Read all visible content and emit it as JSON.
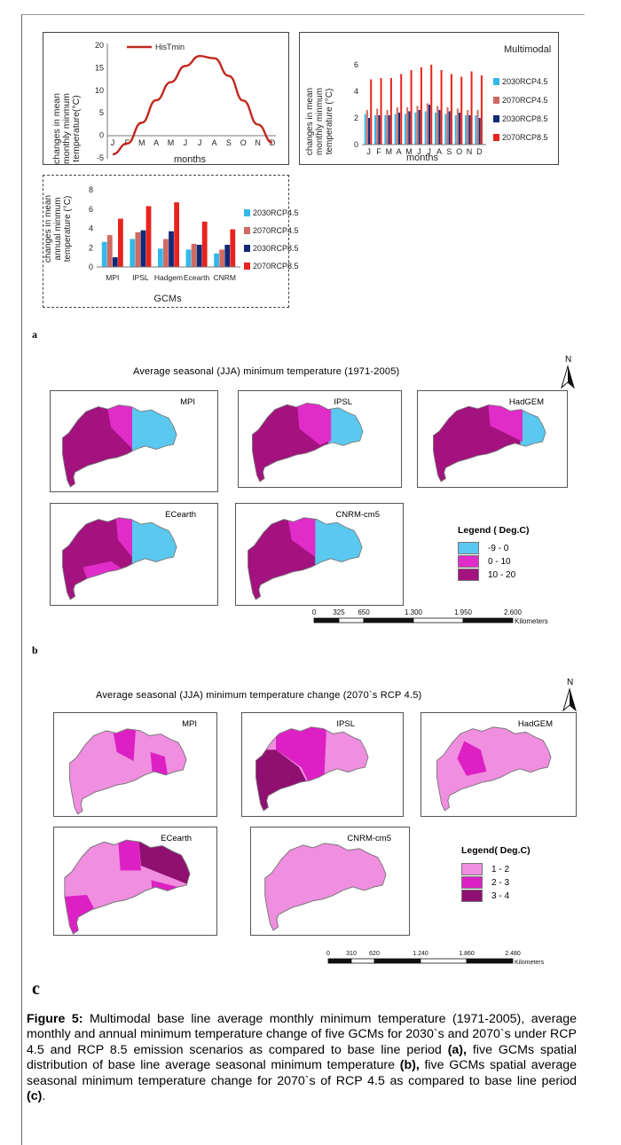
{
  "figure": {
    "caption_label": "Figure 5:",
    "caption_parts": [
      {
        "text": " Multimodal base line average monthly minimum temperature (1971-2005), average monthly and annual minimum temperature change of five GCMs for 2030`s and 2070`s under RCP 4.5 and RCP 8.5 emission scenarios as compared to base line period ",
        "bold": false
      },
      {
        "text": "(a),",
        "bold": true
      },
      {
        "text": " five GCMs spatial distribution of base line average seasonal minimum temperature ",
        "bold": false
      },
      {
        "text": "(b),",
        "bold": true
      },
      {
        "text": " five GCMs spatial average seasonal minimum temperature change for 2070`s of RCP 4.5 as compared to base line period ",
        "bold": false
      },
      {
        "text": "(c)",
        "bold": true
      },
      {
        "text": ".",
        "bold": false
      }
    ]
  },
  "panel_a": {
    "label": "a",
    "hist_chart": {
      "legend": "HisTmin",
      "ylabel_lines": [
        "changes in mean",
        "monthly minmum",
        "temperature(°C)"
      ],
      "xlabel": "months",
      "yticks": [
        "20",
        "15",
        "10",
        "5",
        "0",
        "-5"
      ],
      "color": "#c0281e"
    },
    "monthly_chart": {
      "title": "Multimodal",
      "ylabel_lines": [
        "changes in mean",
        "monthly minmum",
        "temperature (°C)"
      ],
      "xlabel": "months",
      "yticks": [
        "6",
        "4",
        "2",
        "0"
      ]
    },
    "annual_chart": {
      "ylabel_lines": [
        "changes in mean",
        "annual minmum",
        "temperature (°C)"
      ],
      "xlabel": "GCMs",
      "yticks": [
        "8",
        "6",
        "4",
        "2",
        "0"
      ]
    }
  },
  "chart_data": [
    {
      "type": "line",
      "x": [
        "J",
        "F",
        "M",
        "A",
        "M",
        "J",
        "J",
        "A",
        "S",
        "O",
        "N",
        "D"
      ],
      "series": [
        {
          "name": "HisTmin",
          "values": [
            -4.2,
            -1.8,
            2.8,
            7.8,
            11.8,
            15.4,
            17.6,
            17.1,
            13.2,
            7.7,
            2.4,
            -1.6
          ]
        }
      ],
      "xlabel": "months",
      "ylabel": "changes in mean monthly minmum temperature(°C)",
      "ylim": [
        -5,
        20
      ],
      "legend": "top-left",
      "grid": false
    },
    {
      "type": "bar",
      "title": "Multimodal",
      "categories": [
        "J",
        "F",
        "M",
        "A",
        "M",
        "J",
        "J",
        "A",
        "S",
        "O",
        "N",
        "D"
      ],
      "series": [
        {
          "name": "2030RCP4.5",
          "values": [
            2.3,
            2.2,
            2.2,
            2.3,
            2.3,
            2.4,
            2.5,
            2.4,
            2.3,
            2.2,
            2.2,
            2.2
          ]
        },
        {
          "name": "2070RCP4.5",
          "values": [
            2.6,
            2.7,
            2.6,
            2.8,
            2.8,
            2.9,
            3.1,
            2.9,
            2.8,
            2.7,
            2.6,
            2.6
          ]
        },
        {
          "name": "2030RCP8.5",
          "values": [
            2.0,
            2.2,
            2.2,
            2.4,
            2.5,
            2.6,
            3.0,
            2.6,
            2.5,
            2.4,
            2.2,
            2.0
          ]
        },
        {
          "name": "2070RCP8.5",
          "values": [
            4.9,
            5.0,
            5.0,
            5.3,
            5.6,
            5.8,
            6.0,
            5.6,
            5.3,
            5.1,
            5.5,
            5.2
          ]
        }
      ],
      "xlabel": "months",
      "ylabel": "changes in mean monthly minmum temperature (°C)",
      "ylim": [
        0,
        6
      ],
      "legend": "right",
      "colors": [
        "#33b8ea",
        "#d06a62",
        "#102a78",
        "#e8231e"
      ]
    },
    {
      "type": "bar",
      "categories": [
        "MPI",
        "IPSL",
        "Hadgem",
        "Ecearth",
        "CNRM"
      ],
      "series": [
        {
          "name": "2030RCP4.5",
          "values": [
            2.6,
            2.9,
            1.9,
            1.8,
            1.4
          ]
        },
        {
          "name": "2070RCP4.5",
          "values": [
            3.3,
            3.6,
            2.9,
            2.4,
            1.8
          ]
        },
        {
          "name": "2030RCP8.5",
          "values": [
            1.0,
            3.8,
            3.7,
            2.3,
            2.3
          ]
        },
        {
          "name": "2070RCP8.5",
          "values": [
            5.0,
            6.3,
            6.7,
            4.7,
            3.9
          ]
        }
      ],
      "xlabel": "GCMs",
      "ylabel": "changes in mean annual minmum temperature (°C)",
      "ylim": [
        0,
        8
      ],
      "legend": "right",
      "colors": [
        "#33b8ea",
        "#d06a62",
        "#102a78",
        "#e8231e"
      ]
    }
  ],
  "panel_b": {
    "label": "b",
    "title": "Average seasonal (JJA) minimum temperature (1971-2005)",
    "north": "N",
    "maps": [
      "MPI",
      "IPSL",
      "HadGEM",
      "ECearth",
      "CNRM-cm5"
    ],
    "legend_title": "Legend ( Deg.C)",
    "legend_items": [
      {
        "label": "-9 - 0",
        "color": "#5ac8ef"
      },
      {
        "label": "0 - 10",
        "color": "#e02cc8"
      },
      {
        "label": "10 - 20",
        "color": "#a3127e"
      }
    ],
    "scale": {
      "ticks": [
        "0",
        "325",
        "650",
        "1.300",
        "1.950",
        "2.600"
      ],
      "unit": "Kilometers"
    }
  },
  "panel_c": {
    "label": "c",
    "title": "Average seasonal (JJA) minimum temperature change (2070`s RCP 4.5)",
    "north": "N",
    "maps": [
      "MPI",
      "IPSL",
      "HadGEM",
      "ECearth",
      "CNRM-cm5"
    ],
    "legend_title": "Legend( Deg.C)",
    "legend_items": [
      {
        "label": "1 - 2",
        "color": "#f08ee0"
      },
      {
        "label": "2 - 3",
        "color": "#dd20c4"
      },
      {
        "label": "3 - 4",
        "color": "#8f1070"
      }
    ],
    "scale": {
      "ticks": [
        "0",
        "310",
        "620",
        "1.240",
        "1.860",
        "2.480"
      ],
      "unit": "Kilometers"
    }
  }
}
